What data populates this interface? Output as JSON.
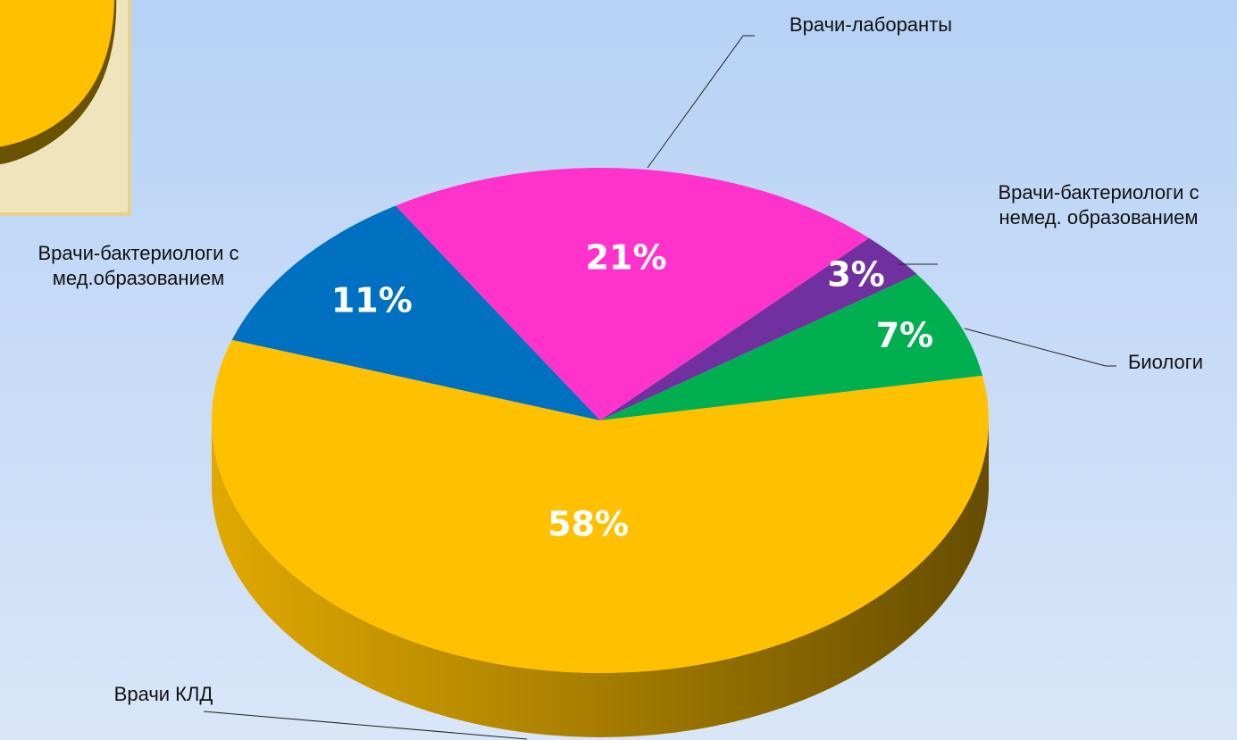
{
  "chart_data": {
    "type": "pie",
    "categories": [
      "Врачи-лаборанты",
      "Врачи-бактериологи с немед. образованием",
      "Биологи",
      "Врачи КЛД",
      "Врачи-бактериологи с мед.образованием"
    ],
    "values": [
      21,
      3,
      7,
      58,
      11
    ],
    "value_labels": [
      "21%",
      "3%",
      "7%",
      "58%",
      "11%"
    ],
    "colors": [
      "#FF33CC",
      "#7030A0",
      "#00B050",
      "#FFC000",
      "#0070C0"
    ]
  }
}
